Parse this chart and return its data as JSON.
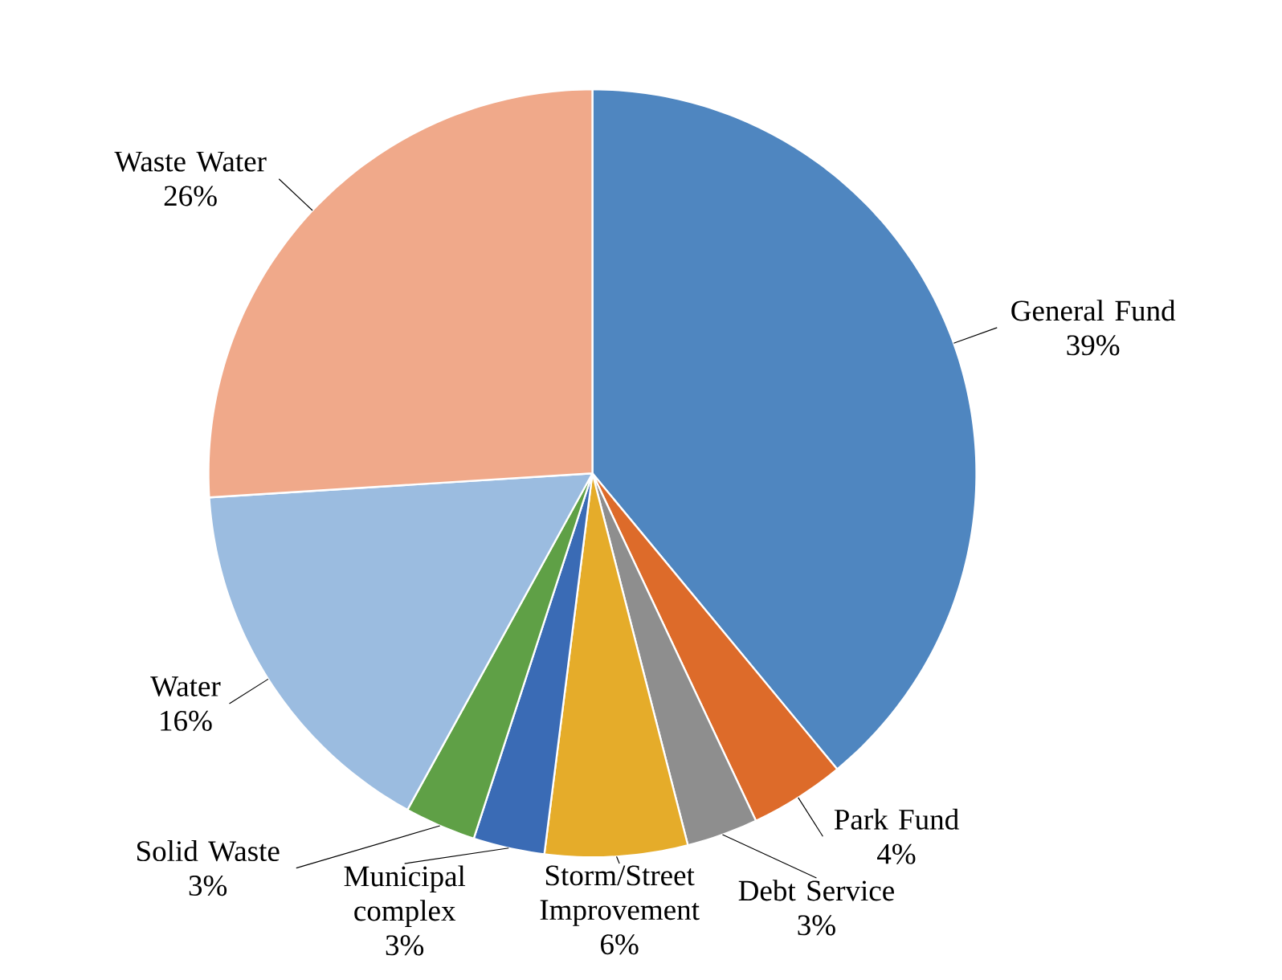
{
  "chart_data": {
    "type": "pie",
    "categories": [
      "General Fund",
      "Park Fund",
      "Debt Service",
      "Storm/Street Improvement",
      "Municipal complex",
      "Solid Waste",
      "Water",
      "Waste Water"
    ],
    "values": [
      39,
      4,
      3,
      6,
      3,
      3,
      16,
      26
    ],
    "value_labels": [
      "39%",
      "4%",
      "3%",
      "6%",
      "3%",
      "3%",
      "16%",
      "26%"
    ],
    "colors": [
      "#4f86c0",
      "#dd6b2a",
      "#8e8e8e",
      "#e5ac2a",
      "#3a6bb5",
      "#5fa046",
      "#9bbce0",
      "#f0a98a"
    ]
  }
}
